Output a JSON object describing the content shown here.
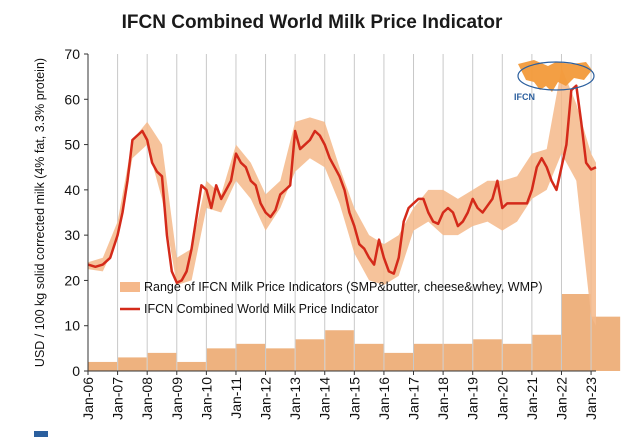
{
  "chart_data": {
    "type": "line",
    "title": "IFCN Combined World Milk Price Indicator",
    "xlabel": "",
    "ylabel": "USD / 100 kg solid corrected milk (4% fat, 3.3% protein)",
    "ylim": [
      0,
      70
    ],
    "yticks": [
      0,
      10,
      20,
      30,
      40,
      50,
      60,
      70
    ],
    "xlim": [
      "2006-01",
      "2023-03"
    ],
    "xticks": [
      "Jan-06",
      "Jan-07",
      "Jan-08",
      "Jan-09",
      "Jan-10",
      "Jan-11",
      "Jan-12",
      "Jan-13",
      "Jan-14",
      "Jan-15",
      "Jan-16",
      "Jan-17",
      "Jan-18",
      "Jan-19",
      "Jan-20",
      "Jan-21",
      "Jan-22",
      "Jan-23"
    ],
    "grid": "vertical",
    "legend_placement": "center-left",
    "colors": {
      "line": "#d42a1a",
      "band": "#f5b88a",
      "bars": "#eeb27f",
      "grid": "#c8c8c8"
    },
    "logo_text": "IFCN",
    "series": [
      {
        "name": "IFCN Combined World Milk Price Indicator",
        "kind": "line",
        "x": [
          "2006-01",
          "2006-04",
          "2006-07",
          "2006-10",
          "2007-01",
          "2007-03",
          "2007-05",
          "2007-07",
          "2007-09",
          "2007-11",
          "2008-01",
          "2008-03",
          "2008-05",
          "2008-07",
          "2008-09",
          "2008-11",
          "2009-01",
          "2009-03",
          "2009-05",
          "2009-07",
          "2009-09",
          "2009-11",
          "2010-01",
          "2010-03",
          "2010-05",
          "2010-07",
          "2010-09",
          "2010-11",
          "2011-01",
          "2011-03",
          "2011-05",
          "2011-07",
          "2011-09",
          "2011-11",
          "2012-01",
          "2012-03",
          "2012-05",
          "2012-07",
          "2012-09",
          "2012-11",
          "2013-01",
          "2013-03",
          "2013-05",
          "2013-07",
          "2013-09",
          "2013-11",
          "2014-01",
          "2014-03",
          "2014-05",
          "2014-07",
          "2014-09",
          "2014-11",
          "2015-01",
          "2015-03",
          "2015-05",
          "2015-07",
          "2015-09",
          "2015-11",
          "2016-01",
          "2016-03",
          "2016-05",
          "2016-07",
          "2016-09",
          "2016-11",
          "2017-01",
          "2017-03",
          "2017-05",
          "2017-07",
          "2017-09",
          "2017-11",
          "2018-01",
          "2018-03",
          "2018-05",
          "2018-07",
          "2018-09",
          "2018-11",
          "2019-01",
          "2019-03",
          "2019-05",
          "2019-07",
          "2019-09",
          "2019-11",
          "2020-01",
          "2020-03",
          "2020-05",
          "2020-07",
          "2020-09",
          "2020-11",
          "2021-01",
          "2021-03",
          "2021-05",
          "2021-07",
          "2021-09",
          "2021-11",
          "2022-01",
          "2022-03",
          "2022-05",
          "2022-07",
          "2022-09",
          "2022-11",
          "2023-01",
          "2023-03"
        ],
        "values": [
          23.5,
          23,
          23.5,
          25,
          30,
          35,
          42,
          51,
          52,
          53,
          51,
          46,
          44,
          43,
          30,
          22,
          19.5,
          20,
          22,
          27,
          34,
          41,
          40,
          36,
          41,
          38,
          40,
          42,
          48,
          46,
          45,
          42,
          41,
          37,
          35,
          34,
          35.5,
          39,
          40,
          41,
          53,
          49,
          50,
          51,
          53,
          52,
          50,
          47,
          45,
          43,
          40,
          35,
          32,
          28,
          27,
          25,
          23.5,
          29,
          25,
          22,
          21.5,
          25,
          33,
          36,
          37,
          38,
          38,
          35,
          33,
          32.5,
          35,
          36,
          35,
          32,
          33,
          35,
          38,
          36,
          35,
          36.5,
          38,
          42,
          36,
          37,
          37,
          37,
          37,
          37,
          40,
          45,
          47,
          45,
          42,
          40,
          45,
          50,
          62,
          63,
          55,
          46,
          44.5,
          45
        ]
      },
      {
        "name": "Range of IFCN Milk Price Indicators (SMP&butter, cheese&whey, WMP)",
        "kind": "band",
        "x": [
          "2006-01",
          "2006-07",
          "2007-01",
          "2007-07",
          "2008-01",
          "2008-07",
          "2009-01",
          "2009-07",
          "2010-01",
          "2010-07",
          "2011-01",
          "2011-07",
          "2012-01",
          "2012-07",
          "2013-01",
          "2013-07",
          "2014-01",
          "2014-07",
          "2015-01",
          "2015-07",
          "2016-01",
          "2016-07",
          "2017-01",
          "2017-07",
          "2018-01",
          "2018-07",
          "2019-01",
          "2019-07",
          "2020-01",
          "2020-07",
          "2021-01",
          "2021-07",
          "2022-01",
          "2022-07",
          "2023-01",
          "2023-03"
        ],
        "upper": [
          24,
          25,
          33,
          51,
          55,
          50,
          25,
          27,
          42,
          39,
          50,
          46,
          39,
          42,
          55,
          56,
          55,
          45,
          36,
          30,
          28,
          30,
          36,
          40,
          40,
          38,
          40,
          42,
          42,
          43,
          48,
          49,
          67,
          59,
          48,
          46
        ],
        "lower": [
          22.5,
          22,
          29,
          47,
          50,
          38,
          19,
          20,
          36,
          35,
          42,
          38,
          31,
          36,
          44,
          47,
          45,
          37,
          26,
          20,
          19,
          21,
          31,
          33,
          30,
          30,
          32,
          33,
          31,
          33,
          38,
          40,
          48,
          42,
          12,
          10
        ]
      },
      {
        "name": "",
        "kind": "bar",
        "x": [
          "2006",
          "2007",
          "2008",
          "2009",
          "2010",
          "2011",
          "2012",
          "2013",
          "2014",
          "2015",
          "2016",
          "2017",
          "2018",
          "2019",
          "2020",
          "2021",
          "2022",
          "2023"
        ],
        "values": [
          2,
          3,
          4,
          2,
          5,
          6,
          5,
          7,
          9,
          6,
          4,
          6,
          6,
          7,
          6,
          8,
          17,
          12
        ]
      }
    ]
  }
}
